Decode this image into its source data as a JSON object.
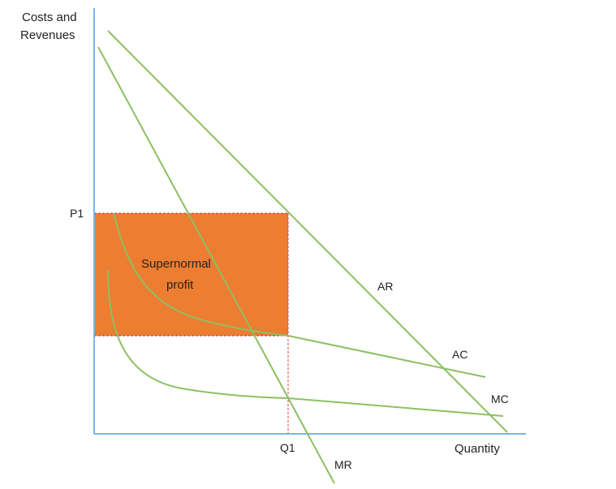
{
  "diagram": {
    "y_axis_title_line1": "Costs and",
    "y_axis_title_line2": "Revenues",
    "x_axis_title": "Quantity",
    "price_label": "P1",
    "quantity_label": "Q1",
    "region_label_line1": "Supernormal",
    "region_label_line2": "profit",
    "curve_labels": {
      "ar": "AR",
      "mr": "MR",
      "ac": "AC",
      "mc": "MC"
    }
  },
  "colors": {
    "axis": "#7fb2e5",
    "curve": "#8cc063",
    "profit_fill": "#ed7d31",
    "guide": "#e04040",
    "text": "#222222"
  }
}
